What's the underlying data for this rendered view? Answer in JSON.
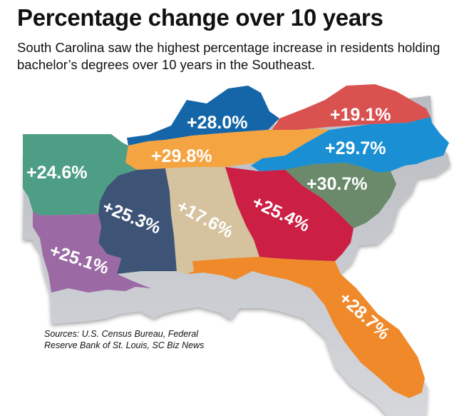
{
  "header": {
    "title": "Percentage change over 10 years",
    "subtitle": "South Carolina saw the highest percentage increase in residents holding bachelor’s degrees over 10 years in the Southeast."
  },
  "states": [
    {
      "id": "kentucky",
      "label": "+28.0%",
      "change_pct": 28.0,
      "color": "#1566a8"
    },
    {
      "id": "virginia",
      "label": "+19.1%",
      "change_pct": 19.1,
      "color": "#d9524f"
    },
    {
      "id": "tennessee",
      "label": "+29.8%",
      "change_pct": 29.8,
      "color": "#f5a442"
    },
    {
      "id": "north-carolina",
      "label": "+29.7%",
      "change_pct": 29.7,
      "color": "#1b8fd3"
    },
    {
      "id": "arkansas",
      "label": "+24.6%",
      "change_pct": 24.6,
      "color": "#4e9e86"
    },
    {
      "id": "south-carolina",
      "label": "+30.7%",
      "change_pct": 30.7,
      "color": "#6b8a6b"
    },
    {
      "id": "mississippi",
      "label": "+25.3%",
      "change_pct": 25.3,
      "color": "#3d5477"
    },
    {
      "id": "alabama",
      "label": "+17.6%",
      "change_pct": 17.6,
      "color": "#d5c39f"
    },
    {
      "id": "georgia",
      "label": "+25.4%",
      "change_pct": 25.4,
      "color": "#cc1f44"
    },
    {
      "id": "louisiana",
      "label": "+25.1%",
      "change_pct": 25.1,
      "color": "#9b6aa5"
    },
    {
      "id": "florida",
      "label": "+28.7%",
      "change_pct": 28.7,
      "color": "#f0892a"
    }
  ],
  "footer": {
    "sources_line1": "Sources: U.S. Census Bureau, Federal",
    "sources_line2": "Reserve Bank of St. Louis, SC Biz News"
  }
}
